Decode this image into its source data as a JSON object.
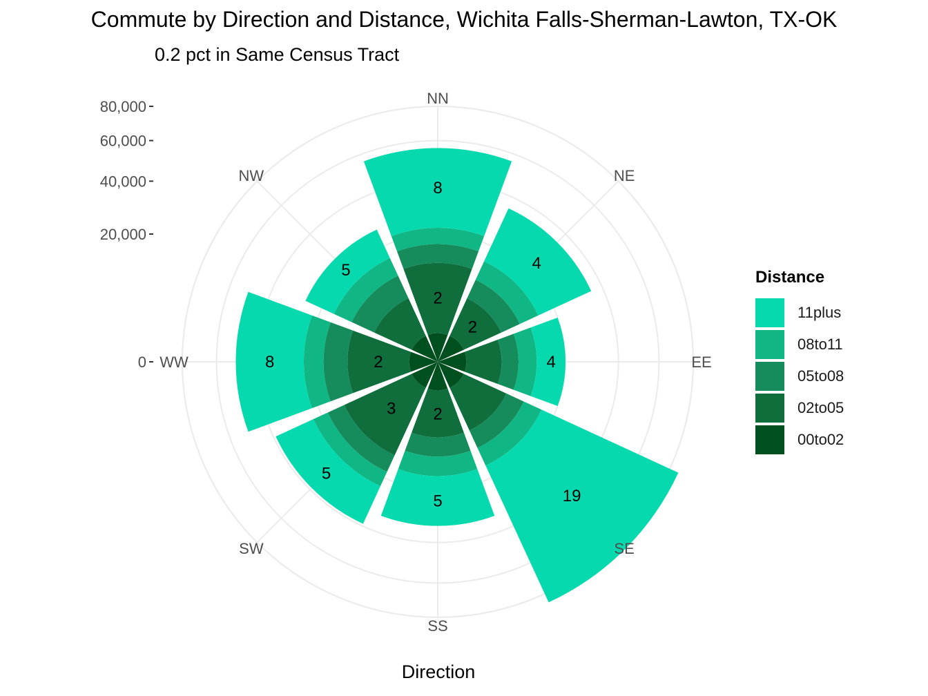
{
  "chart_data": {
    "type": "bar",
    "coord": "polar",
    "stacked": true,
    "title": "Commute by Direction and Distance, Wichita Falls-Sherman-Lawton, TX-OK",
    "subtitle": "0.2 pct in Same Census Tract",
    "xlabel": "Direction",
    "ylabel": "",
    "categories": [
      "NN",
      "NE",
      "EE",
      "SE",
      "SS",
      "SW",
      "WW",
      "NW"
    ],
    "ylim": [
      0,
      80000
    ],
    "y_ticks": [
      0,
      20000,
      40000,
      60000,
      80000
    ],
    "y_tick_labels": [
      "0",
      "20,000",
      "40,000",
      "60,000",
      "80,000"
    ],
    "grid": true,
    "series": [
      {
        "name": "00to02",
        "color": "#00501f",
        "values": [
          1000,
          1000,
          1000,
          1000,
          1000,
          1000,
          1000,
          1000
        ]
      },
      {
        "name": "02to05",
        "color": "#0f6e3c",
        "values": [
          11000,
          5000,
          4000,
          6000,
          6000,
          12000,
          9000,
          5000
        ]
      },
      {
        "name": "05to08",
        "color": "#168c5c",
        "values": [
          5000,
          4000,
          3000,
          4000,
          4000,
          5000,
          6000,
          5000
        ]
      },
      {
        "name": "08to11",
        "color": "#10b683",
        "values": [
          5000,
          5000,
          4000,
          5000,
          5000,
          5000,
          6000,
          5000
        ]
      },
      {
        "name": "11plus",
        "color": "#06d9ae",
        "values": [
          34000,
          20000,
          8000,
          70000,
          17000,
          16000,
          28000,
          10000
        ]
      }
    ],
    "data_labels": [
      "8",
      "4",
      "4",
      "19",
      "5",
      "5",
      "8",
      "5"
    ],
    "inner_labels": [
      "2",
      "2",
      "",
      "",
      "2",
      "3",
      "2",
      ""
    ],
    "legend": {
      "title": "Distance",
      "position": "right",
      "entries": [
        {
          "label": "11plus",
          "color": "#06d9ae"
        },
        {
          "label": "08to11",
          "color": "#10b683"
        },
        {
          "label": "05to08",
          "color": "#168c5c"
        },
        {
          "label": "02to05",
          "color": "#0f6e3c"
        },
        {
          "label": "00to02",
          "color": "#00501f"
        }
      ]
    }
  }
}
